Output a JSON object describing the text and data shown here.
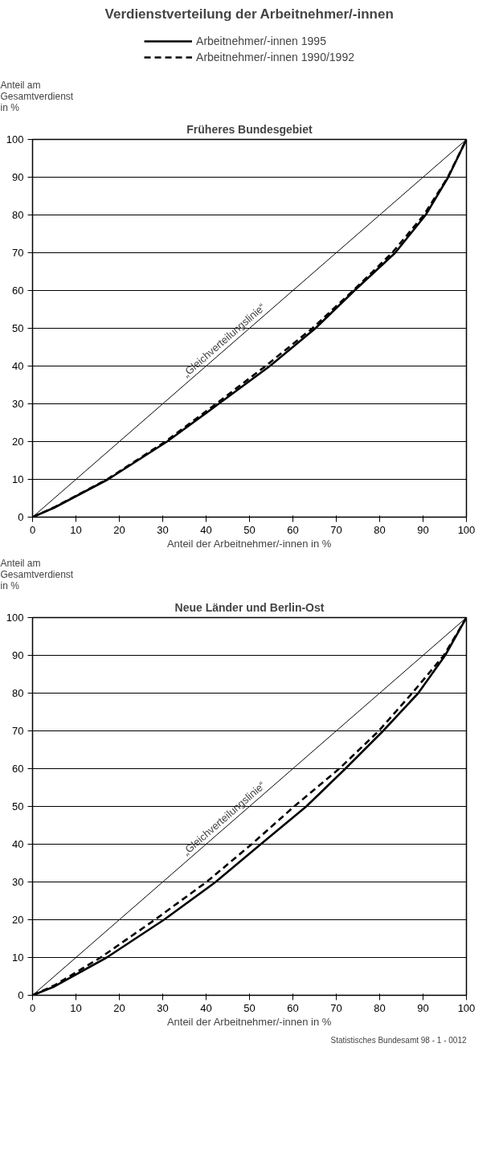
{
  "chart_data": [
    {
      "type": "line",
      "title": "Verdienstverteilung der Arbeitnehmer/-innen",
      "subtitle": "Früheres Bundesgebiet",
      "ylabel": "Anteil am\nGesamtverdienst\nin %",
      "xlabel": "Anteil der Arbeitnehmer/-innen in %",
      "xlim": [
        0,
        100
      ],
      "ylim": [
        0,
        100
      ],
      "xticks": [
        0,
        10,
        20,
        30,
        40,
        50,
        60,
        70,
        80,
        90,
        100
      ],
      "yticks": [
        0,
        10,
        20,
        30,
        40,
        50,
        60,
        70,
        80,
        90,
        100
      ],
      "grid": "y",
      "legend": "top",
      "marker": "none",
      "annotations": [
        "„Gleichverteilungslinie“"
      ],
      "series": [
        {
          "color": "#000000",
          "line_style": "solid",
          "x": [
            0,
            100
          ],
          "values": [
            0,
            100
          ]
        },
        {
          "name": "Arbeitnehmer/-innen 1995",
          "color": "#000000",
          "line_style": "solid",
          "x": [
            0,
            5,
            17.4,
            31,
            42.9,
            54.7,
            65.2,
            74.2,
            83.6,
            90.6,
            95.8,
            100
          ],
          "values": [
            0,
            2.5,
            10,
            20,
            30,
            40,
            50,
            60,
            70,
            80,
            90,
            100
          ]
        },
        {
          "name": "Arbeitnehmer/-innen 1990/1992",
          "color": "#000000",
          "line_style": "dashed",
          "x": [
            0,
            5,
            17.2,
            30.6,
            42.3,
            53.7,
            64.5,
            73.9,
            82.9,
            90.2,
            95.7,
            100
          ],
          "values": [
            0,
            2.6,
            10,
            20,
            30,
            40,
            50,
            60,
            70,
            80,
            90,
            100
          ]
        }
      ]
    },
    {
      "type": "line",
      "subtitle": "Neue Länder und Berlin-Ost",
      "ylabel": "Anteil am\nGesamtverdienst\nin %",
      "xlabel": "Anteil der Arbeitnehmer/-innen in %",
      "xlim": [
        0,
        100
      ],
      "ylim": [
        0,
        100
      ],
      "xticks": [
        0,
        10,
        20,
        30,
        40,
        50,
        60,
        70,
        80,
        90,
        100
      ],
      "yticks": [
        0,
        10,
        20,
        30,
        40,
        50,
        60,
        70,
        80,
        90,
        100
      ],
      "grid": "y",
      "marker": "none",
      "annotations": [
        "„Gleichverteilungslinie“",
        "Statistisches Bundesamt 98 - 1 - 0012"
      ],
      "series": [
        {
          "color": "#000000",
          "line_style": "solid",
          "x": [
            0,
            100
          ],
          "values": [
            0,
            100
          ]
        },
        {
          "color": "#000000",
          "line_style": "solid",
          "x": [
            0,
            5,
            17.1,
            30.3,
            42.2,
            52.6,
            63.1,
            72.1,
            80.8,
            88.9,
            95.1,
            100
          ],
          "values": [
            0,
            2.3,
            10,
            20,
            30,
            40,
            50,
            60,
            70,
            80,
            90,
            100
          ]
        },
        {
          "color": "#000000",
          "line_style": "dashed",
          "x": [
            0,
            5,
            15.7,
            28.2,
            40.1,
            50.5,
            60.3,
            70.7,
            79.8,
            87.5,
            94.8,
            100
          ],
          "values": [
            0,
            2.6,
            10,
            20,
            30,
            40,
            50,
            60,
            70,
            80,
            90,
            100
          ]
        }
      ]
    }
  ]
}
